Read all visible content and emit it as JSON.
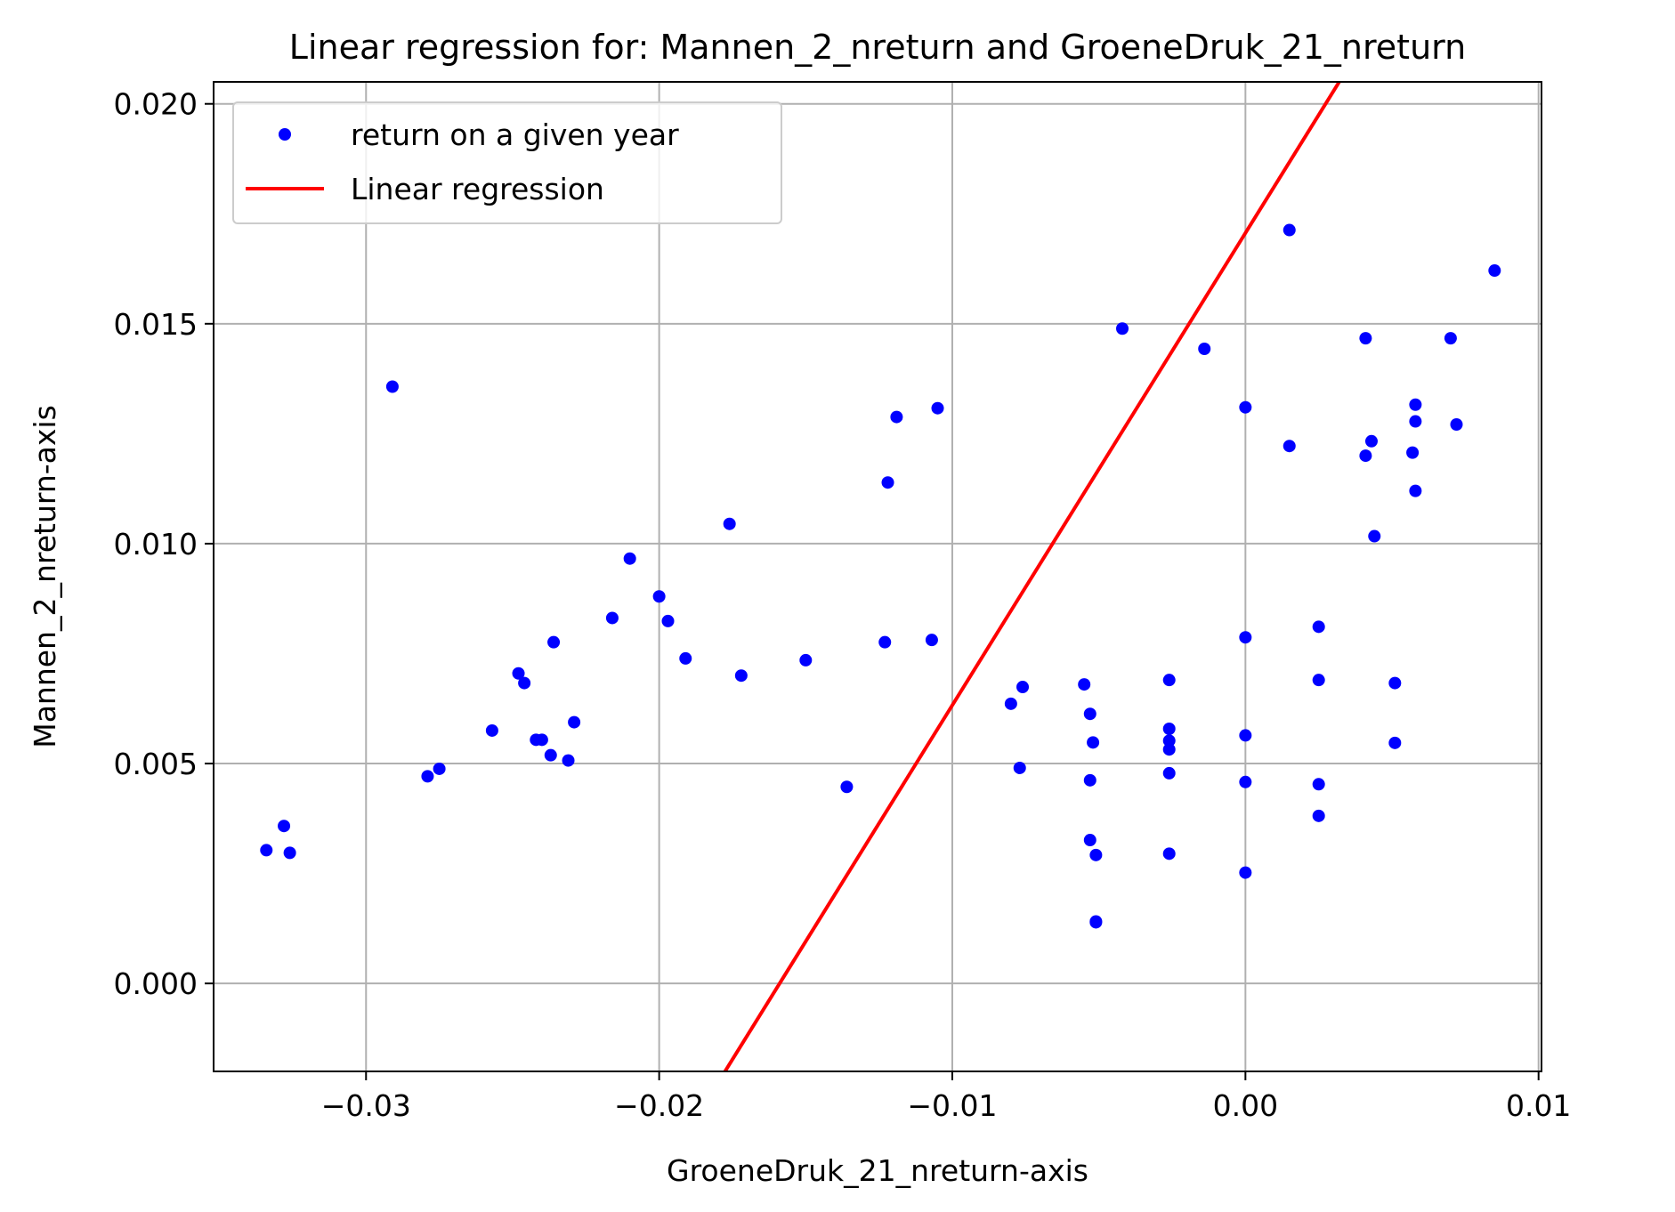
{
  "chart_data": {
    "type": "scatter",
    "title": "Linear regression for: Mannen_2_nreturn and GroeneDruk_21_nreturn",
    "xlabel": "GroeneDruk_21_nreturn-axis",
    "ylabel": "Mannen_2_nreturn-axis",
    "xlim": [
      -0.0352,
      0.0101
    ],
    "ylim": [
      -0.002,
      0.0205
    ],
    "grid": true,
    "legend_position": "top-left",
    "x_ticks": [
      {
        "value": -0.03,
        "label": "−0.03"
      },
      {
        "value": -0.02,
        "label": "−0.02"
      },
      {
        "value": -0.01,
        "label": "−0.01"
      },
      {
        "value": 0.0,
        "label": "0.00"
      },
      {
        "value": 0.01,
        "label": "0.01"
      }
    ],
    "y_ticks": [
      {
        "value": 0.0,
        "label": "0.000"
      },
      {
        "value": 0.005,
        "label": "0.005"
      },
      {
        "value": 0.01,
        "label": "0.010"
      },
      {
        "value": 0.015,
        "label": "0.015"
      },
      {
        "value": 0.02,
        "label": "0.020"
      }
    ],
    "series": [
      {
        "name": "return on a given year",
        "kind": "scatter",
        "color": "#0000ff",
        "points": [
          [
            -0.0334,
            0.00303
          ],
          [
            -0.0328,
            0.00358
          ],
          [
            -0.0326,
            0.00297
          ],
          [
            -0.0291,
            0.01357
          ],
          [
            -0.0279,
            0.00471
          ],
          [
            -0.0275,
            0.00488
          ],
          [
            -0.0257,
            0.00575
          ],
          [
            -0.0248,
            0.00705
          ],
          [
            -0.0246,
            0.00683
          ],
          [
            -0.0242,
            0.00554
          ],
          [
            -0.024,
            0.00554
          ],
          [
            -0.0237,
            0.00519
          ],
          [
            -0.0236,
            0.00776
          ],
          [
            -0.0231,
            0.00507
          ],
          [
            -0.0229,
            0.00594
          ],
          [
            -0.0216,
            0.00831
          ],
          [
            -0.021,
            0.00966
          ],
          [
            -0.02,
            0.0088
          ],
          [
            -0.0197,
            0.00824
          ],
          [
            -0.0191,
            0.00739
          ],
          [
            -0.0176,
            0.01045
          ],
          [
            -0.0172,
            0.007
          ],
          [
            -0.015,
            0.00735
          ],
          [
            -0.0136,
            0.00447
          ],
          [
            -0.0123,
            0.00776
          ],
          [
            -0.0122,
            0.01139
          ],
          [
            -0.0119,
            0.01288
          ],
          [
            -0.0107,
            0.00781
          ],
          [
            -0.0105,
            0.01308
          ],
          [
            -0.008,
            0.00636
          ],
          [
            -0.0077,
            0.0049
          ],
          [
            -0.0076,
            0.00674
          ],
          [
            -0.0055,
            0.0068
          ],
          [
            -0.0053,
            0.00613
          ],
          [
            -0.0053,
            0.00462
          ],
          [
            -0.0053,
            0.00326
          ],
          [
            -0.0052,
            0.00548
          ],
          [
            -0.0051,
            0.00292
          ],
          [
            -0.0051,
            0.00139
          ],
          [
            -0.0051,
            0.00141
          ],
          [
            -0.0042,
            0.01489
          ],
          [
            -0.0026,
            0.0069
          ],
          [
            -0.0026,
            0.00579
          ],
          [
            -0.0026,
            0.00552
          ],
          [
            -0.0026,
            0.00532
          ],
          [
            -0.0026,
            0.00478
          ],
          [
            -0.0026,
            0.00295
          ],
          [
            -0.0014,
            0.01443
          ],
          [
            0.0,
            0.0131
          ],
          [
            0.0,
            0.00787
          ],
          [
            0.0,
            0.00564
          ],
          [
            0.0,
            0.00458
          ],
          [
            0.0,
            0.00252
          ],
          [
            0.0015,
            0.01713
          ],
          [
            0.0015,
            0.01222
          ],
          [
            0.0025,
            0.00811
          ],
          [
            0.0025,
            0.0069
          ],
          [
            0.0025,
            0.00453
          ],
          [
            0.0025,
            0.00381
          ],
          [
            0.0041,
            0.01467
          ],
          [
            0.0041,
            0.012
          ],
          [
            0.0043,
            0.01233
          ],
          [
            0.0044,
            0.01017
          ],
          [
            0.0051,
            0.00683
          ],
          [
            0.0051,
            0.00547
          ],
          [
            0.0057,
            0.01207
          ],
          [
            0.0058,
            0.01316
          ],
          [
            0.0058,
            0.01278
          ],
          [
            0.0058,
            0.0112
          ],
          [
            0.007,
            0.01467
          ],
          [
            0.0072,
            0.01271
          ],
          [
            0.0085,
            0.01621
          ]
        ]
      },
      {
        "name": "Linear regression",
        "kind": "line",
        "color": "#ff0000",
        "points": [
          [
            -0.0178,
            -0.00205
          ],
          [
            0.0032,
            0.0205
          ]
        ]
      }
    ]
  }
}
